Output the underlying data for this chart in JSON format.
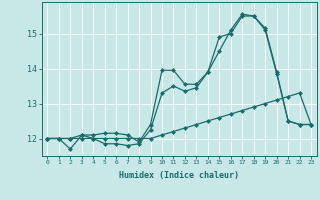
{
  "title": "",
  "xlabel": "Humidex (Indice chaleur)",
  "bg_color": "#c8e8e8",
  "line_color": "#1a6b6b",
  "grid_color": "#ffffff",
  "xlim": [
    -0.5,
    23.5
  ],
  "ylim": [
    11.5,
    15.9
  ],
  "xticks": [
    0,
    1,
    2,
    3,
    4,
    5,
    6,
    7,
    8,
    9,
    10,
    11,
    12,
    13,
    14,
    15,
    16,
    17,
    18,
    19,
    20,
    21,
    22,
    23
  ],
  "yticks": [
    12,
    13,
    14,
    15
  ],
  "line1_x": [
    0,
    1,
    2,
    3,
    4,
    5,
    6,
    7,
    8,
    9,
    10,
    11,
    12,
    13,
    14,
    15,
    16,
    17,
    18,
    19,
    20,
    21,
    22,
    23
  ],
  "line1_y": [
    12.0,
    12.0,
    12.0,
    12.0,
    12.0,
    12.0,
    12.0,
    12.0,
    12.0,
    12.0,
    12.1,
    12.2,
    12.3,
    12.4,
    12.5,
    12.6,
    12.7,
    12.8,
    12.9,
    13.0,
    13.1,
    13.2,
    13.3,
    12.4
  ],
  "line2_x": [
    0,
    1,
    2,
    3,
    4,
    5,
    6,
    7,
    8,
    9,
    10,
    11,
    12,
    13,
    14,
    15,
    16,
    17,
    18,
    19,
    20,
    21,
    22,
    23
  ],
  "line2_y": [
    12.0,
    12.0,
    11.7,
    12.1,
    12.0,
    11.85,
    11.85,
    11.8,
    11.85,
    12.25,
    13.3,
    13.5,
    13.35,
    13.45,
    13.9,
    14.9,
    15.0,
    15.5,
    15.5,
    15.1,
    13.85,
    12.5,
    12.4,
    12.4
  ],
  "line3_x": [
    0,
    1,
    2,
    3,
    4,
    5,
    6,
    7,
    8,
    9,
    10,
    11,
    12,
    13,
    14,
    15,
    16,
    17,
    18,
    19,
    20,
    21,
    22,
    23
  ],
  "line3_y": [
    12.0,
    12.0,
    12.0,
    12.1,
    12.1,
    12.15,
    12.15,
    12.1,
    11.9,
    12.4,
    13.95,
    13.95,
    13.55,
    13.55,
    13.9,
    14.5,
    15.1,
    15.55,
    15.5,
    15.15,
    13.9,
    12.5,
    12.4,
    12.4
  ],
  "marker_size": 2.5,
  "linewidth": 0.9
}
